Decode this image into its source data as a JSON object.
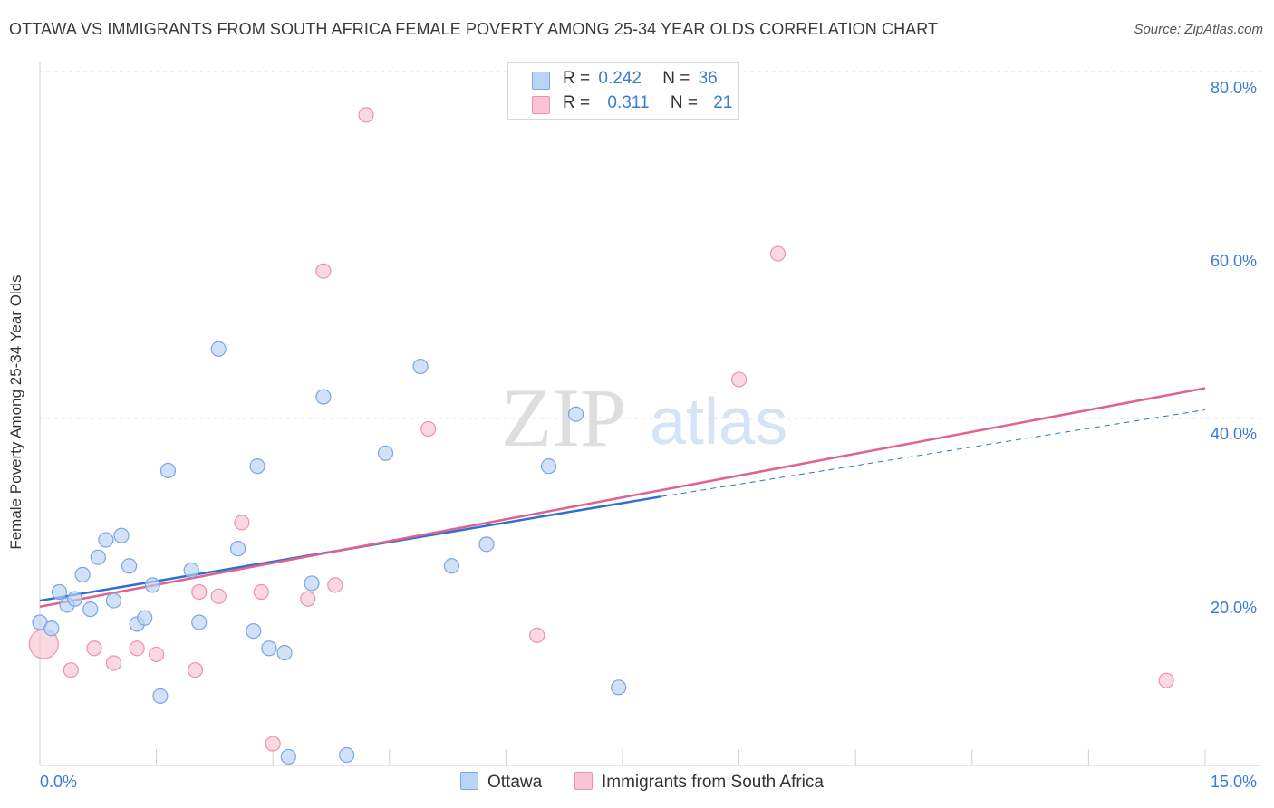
{
  "header": {
    "title": "OTTAWA VS IMMIGRANTS FROM SOUTH AFRICA FEMALE POVERTY AMONG 25-34 YEAR OLDS CORRELATION CHART",
    "source": "Source: ZipAtlas.com"
  },
  "watermark": {
    "zip": "ZIP",
    "atlas": "atlas"
  },
  "legend": {
    "rows": [
      {
        "r_label": "R =",
        "r_value": "0.242",
        "n_label": "N =",
        "n_value": "36"
      },
      {
        "r_label": "R =",
        "r_value": "0.311",
        "n_label": "N =",
        "n_value": "21"
      }
    ]
  },
  "bottom_legend": {
    "series_a": "Ottawa",
    "series_b": "Immigrants from South Africa"
  },
  "colors": {
    "blue_fill": "#b8d3f5",
    "blue_stroke": "#7aa6e0",
    "blue_line": "#2f6fd0",
    "pink_fill": "#f8c3d3",
    "pink_stroke": "#eb93ae",
    "pink_line": "#e0628d",
    "axis_text": "#3a7bd5",
    "grid": "#dcdcdc"
  },
  "chart_data": {
    "type": "scatter",
    "title": "OTTAWA VS IMMIGRANTS FROM SOUTH AFRICA FEMALE POVERTY AMONG 25-34 YEAR OLDS CORRELATION CHART",
    "xlabel": "",
    "ylabel": "Female Poverty Among 25-34 Year Olds",
    "xlim": [
      0,
      15
    ],
    "ylim": [
      0,
      80
    ],
    "x_tick_labels": [
      "0.0%",
      "15.0%"
    ],
    "y_ticks": [
      20,
      40,
      60,
      80
    ],
    "y_tick_labels": [
      "20.0%",
      "40.0%",
      "60.0%",
      "80.0%"
    ],
    "series": [
      {
        "name": "Ottawa",
        "r": 0.242,
        "n": 36,
        "points": [
          [
            0.0,
            16.5
          ],
          [
            0.15,
            15.8
          ],
          [
            0.25,
            20.0
          ],
          [
            0.35,
            18.5
          ],
          [
            0.45,
            19.2
          ],
          [
            0.55,
            22.0
          ],
          [
            0.65,
            18.0
          ],
          [
            0.75,
            24.0
          ],
          [
            0.85,
            26.0
          ],
          [
            0.95,
            19.0
          ],
          [
            1.05,
            26.5
          ],
          [
            1.15,
            23.0
          ],
          [
            1.25,
            16.3
          ],
          [
            1.35,
            17.0
          ],
          [
            1.45,
            20.8
          ],
          [
            1.55,
            8.0
          ],
          [
            1.65,
            34.0
          ],
          [
            1.95,
            22.5
          ],
          [
            2.05,
            16.5
          ],
          [
            2.3,
            48.0
          ],
          [
            2.55,
            25.0
          ],
          [
            2.75,
            15.5
          ],
          [
            2.8,
            34.5
          ],
          [
            2.95,
            13.5
          ],
          [
            3.15,
            13.0
          ],
          [
            3.2,
            1.0
          ],
          [
            3.5,
            21.0
          ],
          [
            3.65,
            42.5
          ],
          [
            3.95,
            1.2
          ],
          [
            4.45,
            36.0
          ],
          [
            4.9,
            46.0
          ],
          [
            5.3,
            23.0
          ],
          [
            5.75,
            25.5
          ],
          [
            6.55,
            34.5
          ],
          [
            6.9,
            40.5
          ],
          [
            7.45,
            9.0
          ]
        ],
        "trend": {
          "x_start": 0,
          "y_start": 19.0,
          "x_solid_end": 8.0,
          "y_solid_end": 31.0,
          "x_dash_end": 15,
          "y_dash_end": 41.0
        }
      },
      {
        "name": "Immigrants from South Africa",
        "r": 0.311,
        "n": 21,
        "points": [
          [
            0.05,
            14.0
          ],
          [
            0.4,
            11.0
          ],
          [
            0.7,
            13.5
          ],
          [
            0.95,
            11.8
          ],
          [
            1.25,
            13.5
          ],
          [
            1.5,
            12.8
          ],
          [
            2.05,
            20.0
          ],
          [
            2.0,
            11.0
          ],
          [
            2.3,
            19.5
          ],
          [
            2.6,
            28.0
          ],
          [
            2.85,
            20.0
          ],
          [
            3.0,
            2.5
          ],
          [
            3.45,
            19.2
          ],
          [
            3.65,
            57.0
          ],
          [
            3.8,
            20.8
          ],
          [
            4.2,
            75.0
          ],
          [
            5.0,
            38.8
          ],
          [
            6.4,
            15.0
          ],
          [
            9.0,
            44.5
          ],
          [
            9.5,
            59.0
          ],
          [
            14.5,
            9.8
          ]
        ],
        "trend": {
          "x_start": 0,
          "y_start": 18.3,
          "x_end": 15,
          "y_end": 43.5
        }
      }
    ]
  }
}
